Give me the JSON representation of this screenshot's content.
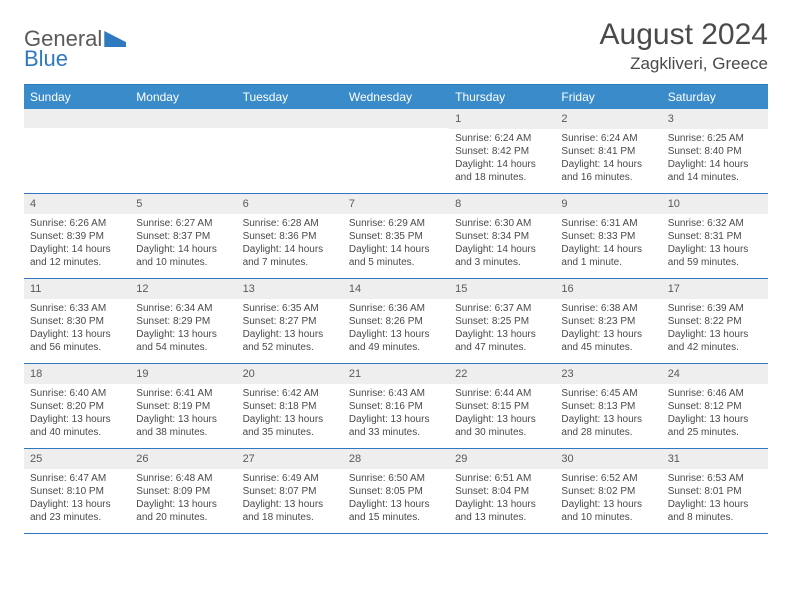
{
  "logo": {
    "part1": "General",
    "part2": "Blue"
  },
  "title": "August 2024",
  "location": "Zagkliveri, Greece",
  "colors": {
    "header_bg": "#3a8bc9",
    "border": "#2f7abf",
    "numrow_bg": "#eeeeee",
    "text": "#4a4a4a"
  },
  "daynames": [
    "Sunday",
    "Monday",
    "Tuesday",
    "Wednesday",
    "Thursday",
    "Friday",
    "Saturday"
  ],
  "weeks": [
    [
      null,
      null,
      null,
      null,
      {
        "n": "1",
        "sr": "6:24 AM",
        "ss": "8:42 PM",
        "dl": "14 hours and 18 minutes."
      },
      {
        "n": "2",
        "sr": "6:24 AM",
        "ss": "8:41 PM",
        "dl": "14 hours and 16 minutes."
      },
      {
        "n": "3",
        "sr": "6:25 AM",
        "ss": "8:40 PM",
        "dl": "14 hours and 14 minutes."
      }
    ],
    [
      {
        "n": "4",
        "sr": "6:26 AM",
        "ss": "8:39 PM",
        "dl": "14 hours and 12 minutes."
      },
      {
        "n": "5",
        "sr": "6:27 AM",
        "ss": "8:37 PM",
        "dl": "14 hours and 10 minutes."
      },
      {
        "n": "6",
        "sr": "6:28 AM",
        "ss": "8:36 PM",
        "dl": "14 hours and 7 minutes."
      },
      {
        "n": "7",
        "sr": "6:29 AM",
        "ss": "8:35 PM",
        "dl": "14 hours and 5 minutes."
      },
      {
        "n": "8",
        "sr": "6:30 AM",
        "ss": "8:34 PM",
        "dl": "14 hours and 3 minutes."
      },
      {
        "n": "9",
        "sr": "6:31 AM",
        "ss": "8:33 PM",
        "dl": "14 hours and 1 minute."
      },
      {
        "n": "10",
        "sr": "6:32 AM",
        "ss": "8:31 PM",
        "dl": "13 hours and 59 minutes."
      }
    ],
    [
      {
        "n": "11",
        "sr": "6:33 AM",
        "ss": "8:30 PM",
        "dl": "13 hours and 56 minutes."
      },
      {
        "n": "12",
        "sr": "6:34 AM",
        "ss": "8:29 PM",
        "dl": "13 hours and 54 minutes."
      },
      {
        "n": "13",
        "sr": "6:35 AM",
        "ss": "8:27 PM",
        "dl": "13 hours and 52 minutes."
      },
      {
        "n": "14",
        "sr": "6:36 AM",
        "ss": "8:26 PM",
        "dl": "13 hours and 49 minutes."
      },
      {
        "n": "15",
        "sr": "6:37 AM",
        "ss": "8:25 PM",
        "dl": "13 hours and 47 minutes."
      },
      {
        "n": "16",
        "sr": "6:38 AM",
        "ss": "8:23 PM",
        "dl": "13 hours and 45 minutes."
      },
      {
        "n": "17",
        "sr": "6:39 AM",
        "ss": "8:22 PM",
        "dl": "13 hours and 42 minutes."
      }
    ],
    [
      {
        "n": "18",
        "sr": "6:40 AM",
        "ss": "8:20 PM",
        "dl": "13 hours and 40 minutes."
      },
      {
        "n": "19",
        "sr": "6:41 AM",
        "ss": "8:19 PM",
        "dl": "13 hours and 38 minutes."
      },
      {
        "n": "20",
        "sr": "6:42 AM",
        "ss": "8:18 PM",
        "dl": "13 hours and 35 minutes."
      },
      {
        "n": "21",
        "sr": "6:43 AM",
        "ss": "8:16 PM",
        "dl": "13 hours and 33 minutes."
      },
      {
        "n": "22",
        "sr": "6:44 AM",
        "ss": "8:15 PM",
        "dl": "13 hours and 30 minutes."
      },
      {
        "n": "23",
        "sr": "6:45 AM",
        "ss": "8:13 PM",
        "dl": "13 hours and 28 minutes."
      },
      {
        "n": "24",
        "sr": "6:46 AM",
        "ss": "8:12 PM",
        "dl": "13 hours and 25 minutes."
      }
    ],
    [
      {
        "n": "25",
        "sr": "6:47 AM",
        "ss": "8:10 PM",
        "dl": "13 hours and 23 minutes."
      },
      {
        "n": "26",
        "sr": "6:48 AM",
        "ss": "8:09 PM",
        "dl": "13 hours and 20 minutes."
      },
      {
        "n": "27",
        "sr": "6:49 AM",
        "ss": "8:07 PM",
        "dl": "13 hours and 18 minutes."
      },
      {
        "n": "28",
        "sr": "6:50 AM",
        "ss": "8:05 PM",
        "dl": "13 hours and 15 minutes."
      },
      {
        "n": "29",
        "sr": "6:51 AM",
        "ss": "8:04 PM",
        "dl": "13 hours and 13 minutes."
      },
      {
        "n": "30",
        "sr": "6:52 AM",
        "ss": "8:02 PM",
        "dl": "13 hours and 10 minutes."
      },
      {
        "n": "31",
        "sr": "6:53 AM",
        "ss": "8:01 PM",
        "dl": "13 hours and 8 minutes."
      }
    ]
  ],
  "labels": {
    "sunrise": "Sunrise: ",
    "sunset": "Sunset: ",
    "daylight": "Daylight: "
  }
}
